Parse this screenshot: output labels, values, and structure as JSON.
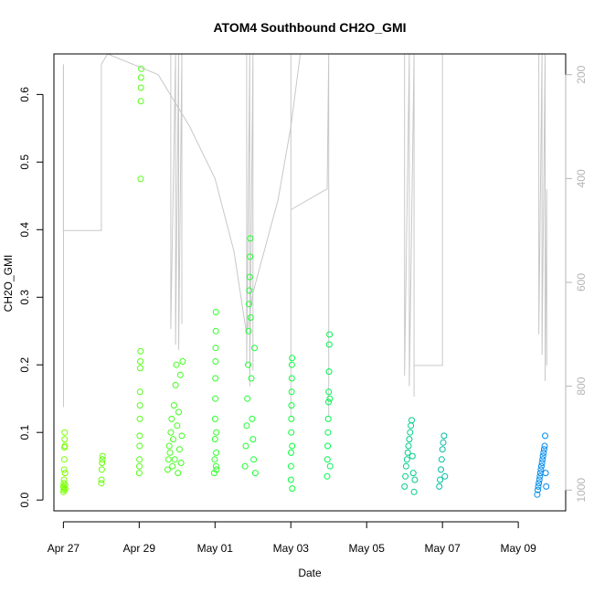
{
  "chart_data": {
    "type": "scatter",
    "title": "ATOM4 Southbound CH2O_GMI",
    "xlabel": "Date",
    "ylabel": "CH2O_GMI",
    "xlim": [
      "2018-04-26T18:00",
      "2018-05-10T06:00"
    ],
    "ylim": [
      -0.016,
      0.66
    ],
    "x_ticks": [
      {
        "date": "2018-04-27",
        "label": "Apr 27"
      },
      {
        "date": "2018-04-29",
        "label": "Apr 29"
      },
      {
        "date": "2018-05-01",
        "label": "May 01"
      },
      {
        "date": "2018-05-03",
        "label": "May 03"
      },
      {
        "date": "2018-05-05",
        "label": "May 05"
      },
      {
        "date": "2018-05-07",
        "label": "May 07"
      },
      {
        "date": "2018-05-09",
        "label": "May 09"
      }
    ],
    "y_ticks": [
      "0.0",
      "0.1",
      "0.2",
      "0.3",
      "0.4",
      "0.5",
      "0.6"
    ],
    "y2_range": [
      1040,
      160
    ],
    "y2_ticks": [
      "200",
      "400",
      "600",
      "800",
      "1000"
    ],
    "grid": false,
    "point_style": "open circles, colored by time (yellow-green to blue)",
    "secondary_series_style": "grey lines (aircraft altitude profile on right axis)",
    "series": [
      {
        "values": [
          {
            "x": "2018-04-27T00:00",
            "y": 0.02
          },
          {
            "x": "2018-04-27T00:05",
            "y": 0.012
          },
          {
            "x": "2018-04-27T00:10",
            "y": 0.018
          },
          {
            "x": "2018-04-27T00:15",
            "y": 0.025
          },
          {
            "x": "2018-04-27T00:20",
            "y": 0.015
          },
          {
            "x": "2018-04-27T00:25",
            "y": 0.03
          },
          {
            "x": "2018-04-27T00:30",
            "y": 0.045
          },
          {
            "x": "2018-04-27T00:35",
            "y": 0.06
          },
          {
            "x": "2018-04-27T00:40",
            "y": 0.078
          },
          {
            "x": "2018-04-27T00:45",
            "y": 0.09
          },
          {
            "x": "2018-04-27T00:50",
            "y": 0.1
          },
          {
            "x": "2018-04-27T00:55",
            "y": 0.08
          },
          {
            "x": "2018-04-27T01:00",
            "y": 0.04
          },
          {
            "x": "2018-04-27T01:05",
            "y": 0.022
          },
          {
            "x": "2018-04-27T01:10",
            "y": 0.016
          },
          {
            "x": "2018-04-28T00:00",
            "y": 0.025
          },
          {
            "x": "2018-04-28T00:10",
            "y": 0.03
          },
          {
            "x": "2018-04-28T00:20",
            "y": 0.045
          },
          {
            "x": "2018-04-28T00:30",
            "y": 0.055
          },
          {
            "x": "2018-04-28T00:40",
            "y": 0.06
          },
          {
            "x": "2018-04-28T00:50",
            "y": 0.065
          },
          {
            "x": "2018-04-29T00:00",
            "y": 0.04
          },
          {
            "x": "2018-04-29T00:05",
            "y": 0.05
          },
          {
            "x": "2018-04-29T00:10",
            "y": 0.06
          },
          {
            "x": "2018-04-29T00:15",
            "y": 0.08
          },
          {
            "x": "2018-04-29T00:20",
            "y": 0.095
          },
          {
            "x": "2018-04-29T00:25",
            "y": 0.12
          },
          {
            "x": "2018-04-29T00:30",
            "y": 0.14
          },
          {
            "x": "2018-04-29T00:35",
            "y": 0.16
          },
          {
            "x": "2018-04-29T00:40",
            "y": 0.195
          },
          {
            "x": "2018-04-29T00:45",
            "y": 0.205
          },
          {
            "x": "2018-04-29T00:50",
            "y": 0.22
          },
          {
            "x": "2018-04-29T00:55",
            "y": 0.475
          },
          {
            "x": "2018-04-29T01:00",
            "y": 0.59
          },
          {
            "x": "2018-04-29T01:05",
            "y": 0.61
          },
          {
            "x": "2018-04-29T01:10",
            "y": 0.625
          },
          {
            "x": "2018-04-29T01:15",
            "y": 0.638
          }
        ]
      },
      {
        "values": [
          {
            "x": "2018-04-29T18:00",
            "y": 0.045
          },
          {
            "x": "2018-04-29T18:30",
            "y": 0.06
          },
          {
            "x": "2018-04-29T19:00",
            "y": 0.08
          },
          {
            "x": "2018-04-29T19:30",
            "y": 0.07
          },
          {
            "x": "2018-04-29T20:00",
            "y": 0.1
          },
          {
            "x": "2018-04-29T20:30",
            "y": 0.12
          },
          {
            "x": "2018-04-29T21:00",
            "y": 0.05
          },
          {
            "x": "2018-04-29T21:30",
            "y": 0.09
          },
          {
            "x": "2018-04-29T22:00",
            "y": 0.14
          },
          {
            "x": "2018-04-29T22:30",
            "y": 0.06
          },
          {
            "x": "2018-04-29T23:00",
            "y": 0.17
          },
          {
            "x": "2018-04-29T23:30",
            "y": 0.2
          },
          {
            "x": "2018-04-30T00:00",
            "y": 0.11
          },
          {
            "x": "2018-04-30T00:30",
            "y": 0.04
          },
          {
            "x": "2018-04-30T01:00",
            "y": 0.13
          },
          {
            "x": "2018-04-30T01:30",
            "y": 0.075
          },
          {
            "x": "2018-04-30T02:00",
            "y": 0.185
          },
          {
            "x": "2018-04-30T02:30",
            "y": 0.055
          },
          {
            "x": "2018-04-30T03:00",
            "y": 0.095
          },
          {
            "x": "2018-04-30T03:30",
            "y": 0.205
          }
        ]
      },
      {
        "values": [
          {
            "x": "2018-04-30T23:30",
            "y": 0.04
          },
          {
            "x": "2018-04-30T23:45",
            "y": 0.06
          },
          {
            "x": "2018-05-01T00:00",
            "y": 0.09
          },
          {
            "x": "2018-05-01T00:05",
            "y": 0.12
          },
          {
            "x": "2018-05-01T00:10",
            "y": 0.15
          },
          {
            "x": "2018-05-01T00:15",
            "y": 0.18
          },
          {
            "x": "2018-05-01T00:20",
            "y": 0.205
          },
          {
            "x": "2018-05-01T00:25",
            "y": 0.225
          },
          {
            "x": "2018-05-01T00:30",
            "y": 0.25
          },
          {
            "x": "2018-05-01T00:35",
            "y": 0.278
          },
          {
            "x": "2018-05-01T00:40",
            "y": 0.05
          },
          {
            "x": "2018-05-01T00:45",
            "y": 0.07
          },
          {
            "x": "2018-05-01T00:50",
            "y": 0.1
          },
          {
            "x": "2018-05-01T00:55",
            "y": 0.045
          },
          {
            "x": "2018-05-01T19:00",
            "y": 0.05
          },
          {
            "x": "2018-05-01T19:30",
            "y": 0.08
          },
          {
            "x": "2018-05-01T20:00",
            "y": 0.11
          },
          {
            "x": "2018-05-01T20:30",
            "y": 0.15
          },
          {
            "x": "2018-05-01T21:00",
            "y": 0.2
          },
          {
            "x": "2018-05-01T21:15",
            "y": 0.25
          },
          {
            "x": "2018-05-01T21:30",
            "y": 0.29
          },
          {
            "x": "2018-05-01T21:45",
            "y": 0.31
          },
          {
            "x": "2018-05-01T22:00",
            "y": 0.33
          },
          {
            "x": "2018-05-01T22:10",
            "y": 0.36
          },
          {
            "x": "2018-05-01T22:20",
            "y": 0.387
          },
          {
            "x": "2018-05-01T22:30",
            "y": 0.27
          },
          {
            "x": "2018-05-01T23:00",
            "y": 0.18
          },
          {
            "x": "2018-05-01T23:30",
            "y": 0.12
          },
          {
            "x": "2018-05-02T00:00",
            "y": 0.09
          },
          {
            "x": "2018-05-02T00:30",
            "y": 0.06
          },
          {
            "x": "2018-05-02T01:00",
            "y": 0.225
          },
          {
            "x": "2018-05-02T01:30",
            "y": 0.04
          }
        ]
      },
      {
        "values": [
          {
            "x": "2018-05-03T00:00",
            "y": 0.03
          },
          {
            "x": "2018-05-03T00:05",
            "y": 0.05
          },
          {
            "x": "2018-05-03T00:10",
            "y": 0.07
          },
          {
            "x": "2018-05-03T00:15",
            "y": 0.1
          },
          {
            "x": "2018-05-03T00:20",
            "y": 0.12
          },
          {
            "x": "2018-05-03T00:25",
            "y": 0.14
          },
          {
            "x": "2018-05-03T00:30",
            "y": 0.16
          },
          {
            "x": "2018-05-03T00:35",
            "y": 0.18
          },
          {
            "x": "2018-05-03T00:40",
            "y": 0.2
          },
          {
            "x": "2018-05-03T00:45",
            "y": 0.21
          },
          {
            "x": "2018-05-03T00:50",
            "y": 0.08
          },
          {
            "x": "2018-05-03T00:55",
            "y": 0.017
          },
          {
            "x": "2018-05-03T23:00",
            "y": 0.035
          },
          {
            "x": "2018-05-03T23:10",
            "y": 0.06
          },
          {
            "x": "2018-05-03T23:20",
            "y": 0.08
          },
          {
            "x": "2018-05-03T23:30",
            "y": 0.1
          },
          {
            "x": "2018-05-03T23:40",
            "y": 0.12
          },
          {
            "x": "2018-05-03T23:50",
            "y": 0.145
          },
          {
            "x": "2018-05-04T00:00",
            "y": 0.16
          },
          {
            "x": "2018-05-04T00:10",
            "y": 0.19
          },
          {
            "x": "2018-05-04T00:20",
            "y": 0.23
          },
          {
            "x": "2018-05-04T00:30",
            "y": 0.245
          },
          {
            "x": "2018-05-04T00:40",
            "y": 0.15
          },
          {
            "x": "2018-05-04T00:50",
            "y": 0.05
          }
        ]
      },
      {
        "values": [
          {
            "x": "2018-05-06T00:00",
            "y": 0.02
          },
          {
            "x": "2018-05-06T00:30",
            "y": 0.035
          },
          {
            "x": "2018-05-06T01:00",
            "y": 0.05
          },
          {
            "x": "2018-05-06T01:30",
            "y": 0.06
          },
          {
            "x": "2018-05-06T02:00",
            "y": 0.07
          },
          {
            "x": "2018-05-06T02:30",
            "y": 0.08
          },
          {
            "x": "2018-05-06T03:00",
            "y": 0.09
          },
          {
            "x": "2018-05-06T03:30",
            "y": 0.1
          },
          {
            "x": "2018-05-06T04:00",
            "y": 0.11
          },
          {
            "x": "2018-05-06T04:30",
            "y": 0.118
          },
          {
            "x": "2018-05-06T05:00",
            "y": 0.065
          },
          {
            "x": "2018-05-06T05:30",
            "y": 0.04
          },
          {
            "x": "2018-05-06T06:00",
            "y": 0.012
          },
          {
            "x": "2018-05-06T06:30",
            "y": 0.03
          },
          {
            "x": "2018-05-06T22:00",
            "y": 0.02
          },
          {
            "x": "2018-05-06T22:30",
            "y": 0.03
          },
          {
            "x": "2018-05-06T23:00",
            "y": 0.045
          },
          {
            "x": "2018-05-06T23:30",
            "y": 0.06
          },
          {
            "x": "2018-05-07T00:00",
            "y": 0.075
          },
          {
            "x": "2018-05-07T00:30",
            "y": 0.085
          },
          {
            "x": "2018-05-07T01:00",
            "y": 0.095
          },
          {
            "x": "2018-05-07T01:30",
            "y": 0.035
          }
        ]
      },
      {
        "values": [
          {
            "x": "2018-05-09T12:00",
            "y": 0.008
          },
          {
            "x": "2018-05-09T12:20",
            "y": 0.015
          },
          {
            "x": "2018-05-09T12:40",
            "y": 0.02
          },
          {
            "x": "2018-05-09T13:00",
            "y": 0.025
          },
          {
            "x": "2018-05-09T13:20",
            "y": 0.03
          },
          {
            "x": "2018-05-09T13:40",
            "y": 0.035
          },
          {
            "x": "2018-05-09T14:00",
            "y": 0.04
          },
          {
            "x": "2018-05-09T14:20",
            "y": 0.045
          },
          {
            "x": "2018-05-09T14:40",
            "y": 0.05
          },
          {
            "x": "2018-05-09T15:00",
            "y": 0.055
          },
          {
            "x": "2018-05-09T15:20",
            "y": 0.06
          },
          {
            "x": "2018-05-09T15:40",
            "y": 0.065
          },
          {
            "x": "2018-05-09T16:00",
            "y": 0.07
          },
          {
            "x": "2018-05-09T16:20",
            "y": 0.075
          },
          {
            "x": "2018-05-09T16:40",
            "y": 0.08
          },
          {
            "x": "2018-05-09T17:00",
            "y": 0.095
          },
          {
            "x": "2018-05-09T17:20",
            "y": 0.04
          },
          {
            "x": "2018-05-09T17:40",
            "y": 0.02
          }
        ]
      }
    ],
    "secondary_series": [
      {
        "values": [
          {
            "x": "2018-04-27T00:00",
            "y2": 180
          },
          {
            "x": "2018-04-27T00:00",
            "y2": 500
          },
          {
            "x": "2018-04-28T00:00",
            "y2": 500
          },
          {
            "x": "2018-04-28T00:00",
            "y2": 180
          },
          {
            "x": "2018-04-28T04:00",
            "y2": 160
          },
          {
            "x": "2018-04-29T12:00",
            "y2": 200
          },
          {
            "x": "2018-04-30T08:00",
            "y2": 300
          },
          {
            "x": "2018-05-01T00:00",
            "y2": 400
          },
          {
            "x": "2018-05-01T12:00",
            "y2": 540
          },
          {
            "x": "2018-05-01T20:00",
            "y2": 700
          },
          {
            "x": "2018-05-02T00:00",
            "y2": 620
          },
          {
            "x": "2018-05-02T16:00",
            "y2": 440
          },
          {
            "x": "2018-05-03T00:00",
            "y2": 300
          },
          {
            "x": "2018-05-03T06:00",
            "y2": 160
          },
          {
            "x": "2018-05-03T12:00",
            "y2": 160
          }
        ]
      },
      {
        "values": [
          {
            "x": "2018-04-27T00:05",
            "y2": 180
          },
          {
            "x": "2018-04-27T00:05",
            "y2": 840
          }
        ]
      },
      {
        "values": [
          {
            "x": "2018-04-29T20:00",
            "y2": 160
          },
          {
            "x": "2018-04-29T20:00",
            "y2": 690
          },
          {
            "x": "2018-04-29T23:00",
            "y2": 160
          },
          {
            "x": "2018-04-29T23:00",
            "y2": 720
          },
          {
            "x": "2018-04-30T01:00",
            "y2": 160
          },
          {
            "x": "2018-04-30T01:00",
            "y2": 730
          },
          {
            "x": "2018-04-30T03:00",
            "y2": 160
          },
          {
            "x": "2018-04-30T03:00",
            "y2": 680
          }
        ]
      },
      {
        "values": [
          {
            "x": "2018-05-01T20:00",
            "y2": 160
          },
          {
            "x": "2018-05-01T20:00",
            "y2": 760
          },
          {
            "x": "2018-05-01T22:00",
            "y2": 160
          },
          {
            "x": "2018-05-01T22:00",
            "y2": 800
          },
          {
            "x": "2018-05-02T00:00",
            "y2": 160
          },
          {
            "x": "2018-05-02T00:00",
            "y2": 770
          }
        ]
      },
      {
        "values": [
          {
            "x": "2018-05-03T00:00",
            "y2": 160
          },
          {
            "x": "2018-05-03T00:00",
            "y2": 860
          },
          {
            "x": "2018-05-03T00:00",
            "y2": 460
          },
          {
            "x": "2018-05-03T23:00",
            "y2": 420
          },
          {
            "x": "2018-05-04T00:00",
            "y2": 160
          },
          {
            "x": "2018-05-04T00:00",
            "y2": 860
          }
        ]
      },
      {
        "values": [
          {
            "x": "2018-05-06T00:00",
            "y2": 160
          },
          {
            "x": "2018-05-06T00:00",
            "y2": 780
          },
          {
            "x": "2018-05-06T03:00",
            "y2": 160
          },
          {
            "x": "2018-05-06T03:00",
            "y2": 800
          },
          {
            "x": "2018-05-06T06:00",
            "y2": 160
          },
          {
            "x": "2018-05-06T06:00",
            "y2": 820
          },
          {
            "x": "2018-05-06T06:00",
            "y2": 760
          },
          {
            "x": "2018-05-07T00:00",
            "y2": 760
          },
          {
            "x": "2018-05-07T00:00",
            "y2": 160
          },
          {
            "x": "2018-05-07T00:00",
            "y2": 740
          }
        ]
      },
      {
        "values": [
          {
            "x": "2018-05-09T13:00",
            "y2": 160
          },
          {
            "x": "2018-05-09T13:00",
            "y2": 700
          },
          {
            "x": "2018-05-09T15:00",
            "y2": 160
          },
          {
            "x": "2018-05-09T15:00",
            "y2": 740
          },
          {
            "x": "2018-05-09T17:00",
            "y2": 160
          },
          {
            "x": "2018-05-09T17:00",
            "y2": 790
          },
          {
            "x": "2018-05-09T18:00",
            "y2": 420
          },
          {
            "x": "2018-05-09T18:00",
            "y2": 760
          }
        ]
      }
    ],
    "colors": {
      "point_gradient_start": "#7fff00",
      "point_gradient_mid": "#00ff40",
      "point_gradient_end": "#0080ff",
      "secondary_line": "#c8c8c8",
      "right_axis": "#b4b4b4"
    }
  }
}
